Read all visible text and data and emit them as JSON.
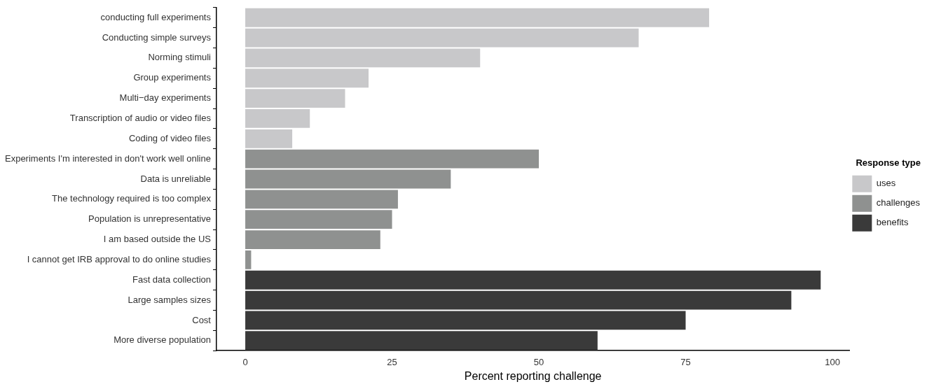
{
  "chart_data": {
    "type": "bar",
    "orientation": "horizontal",
    "stacked": true,
    "categories": [
      "conducting full experiments",
      "Conducting simple surveys",
      "Norming stimuli",
      "Group experiments",
      "Multi−day experiments",
      "Transcription of audio or video files",
      "Coding of video files",
      "Experiments I'm interested in don't work well online",
      "Data is unreliable",
      "The technology required is too complex",
      "Population is unrepresentative",
      "I am based outside the US",
      "I cannot get IRB approval to do online studies",
      "Fast data collection",
      "Large samples sizes",
      "Cost",
      "More diverse population"
    ],
    "series": [
      {
        "name": "uses",
        "color": "#c8c8ca",
        "values": [
          79,
          67,
          40,
          21,
          17,
          11,
          8,
          null,
          null,
          null,
          null,
          null,
          null,
          null,
          null,
          null,
          null
        ]
      },
      {
        "name": "challenges",
        "color": "#8f9190",
        "values": [
          null,
          null,
          null,
          null,
          null,
          null,
          null,
          50,
          35,
          26,
          25,
          23,
          1,
          null,
          null,
          null,
          null
        ]
      },
      {
        "name": "benefits",
        "color": "#3a3a3a",
        "values": [
          null,
          null,
          null,
          null,
          null,
          null,
          null,
          null,
          null,
          null,
          null,
          null,
          null,
          98,
          93,
          75,
          60
        ]
      }
    ],
    "xlabel": "Percent reporting challenge",
    "legend_title": "Response type",
    "legend": "right",
    "xlim": [
      -4.9,
      102.9
    ],
    "xticks": [
      0,
      25,
      50,
      75,
      100
    ],
    "grid": false
  }
}
